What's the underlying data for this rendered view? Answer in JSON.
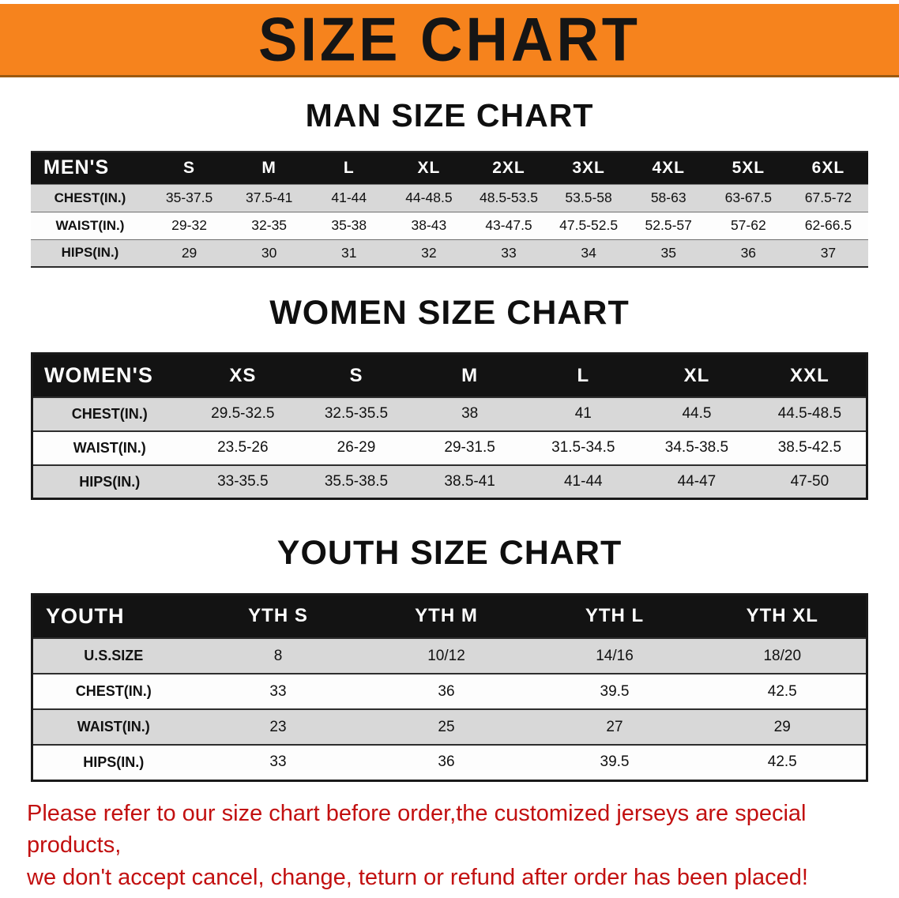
{
  "banner": {
    "title": "SIZE CHART"
  },
  "sections": [
    {
      "heading": "MAN SIZE CHART",
      "table": {
        "header": [
          "MEN'S",
          "S",
          "M",
          "L",
          "XL",
          "2XL",
          "3XL",
          "4XL",
          "5XL",
          "6XL"
        ],
        "rows": [
          [
            "CHEST(IN.)",
            "35-37.5",
            "37.5-41",
            "41-44",
            "44-48.5",
            "48.5-53.5",
            "53.5-58",
            "58-63",
            "63-67.5",
            "67.5-72"
          ],
          [
            "WAIST(IN.)",
            "29-32",
            "32-35",
            "35-38",
            "38-43",
            "43-47.5",
            "47.5-52.5",
            "52.5-57",
            "57-62",
            "62-66.5"
          ],
          [
            "HIPS(IN.)",
            "29",
            "30",
            "31",
            "32",
            "33",
            "34",
            "35",
            "36",
            "37"
          ]
        ]
      }
    },
    {
      "heading": "WOMEN SIZE CHART",
      "table": {
        "header": [
          "WOMEN'S",
          "XS",
          "S",
          "M",
          "L",
          "XL",
          "XXL"
        ],
        "rows": [
          [
            "CHEST(IN.)",
            "29.5-32.5",
            "32.5-35.5",
            "38",
            "41",
            "44.5",
            "44.5-48.5"
          ],
          [
            "WAIST(IN.)",
            "23.5-26",
            "26-29",
            "29-31.5",
            "31.5-34.5",
            "34.5-38.5",
            "38.5-42.5"
          ],
          [
            "HIPS(IN.)",
            "33-35.5",
            "35.5-38.5",
            "38.5-41",
            "41-44",
            "44-47",
            "47-50"
          ]
        ]
      }
    },
    {
      "heading": "YOUTH SIZE CHART",
      "table": {
        "header": [
          "YOUTH",
          "YTH S",
          "YTH M",
          "YTH L",
          "YTH XL"
        ],
        "rows": [
          [
            "U.S.SIZE",
            "8",
            "10/12",
            "14/16",
            "18/20"
          ],
          [
            "CHEST(IN.)",
            "33",
            "36",
            "39.5",
            "42.5"
          ],
          [
            "WAIST(IN.)",
            "23",
            "25",
            "27",
            "29"
          ],
          [
            "HIPS(IN.)",
            "33",
            "36",
            "39.5",
            "42.5"
          ]
        ]
      }
    }
  ],
  "disclaimer": {
    "line1": "Please refer to our size chart before order,the customized jerseys are special products,",
    "line2": "we don't accept cancel, change, teturn or refund after order has been placed!"
  },
  "colors": {
    "banner_orange": "#F6831D",
    "header_black": "#131313",
    "row_gray": "#D8D8D8",
    "disclaimer_red": "#C21010"
  }
}
